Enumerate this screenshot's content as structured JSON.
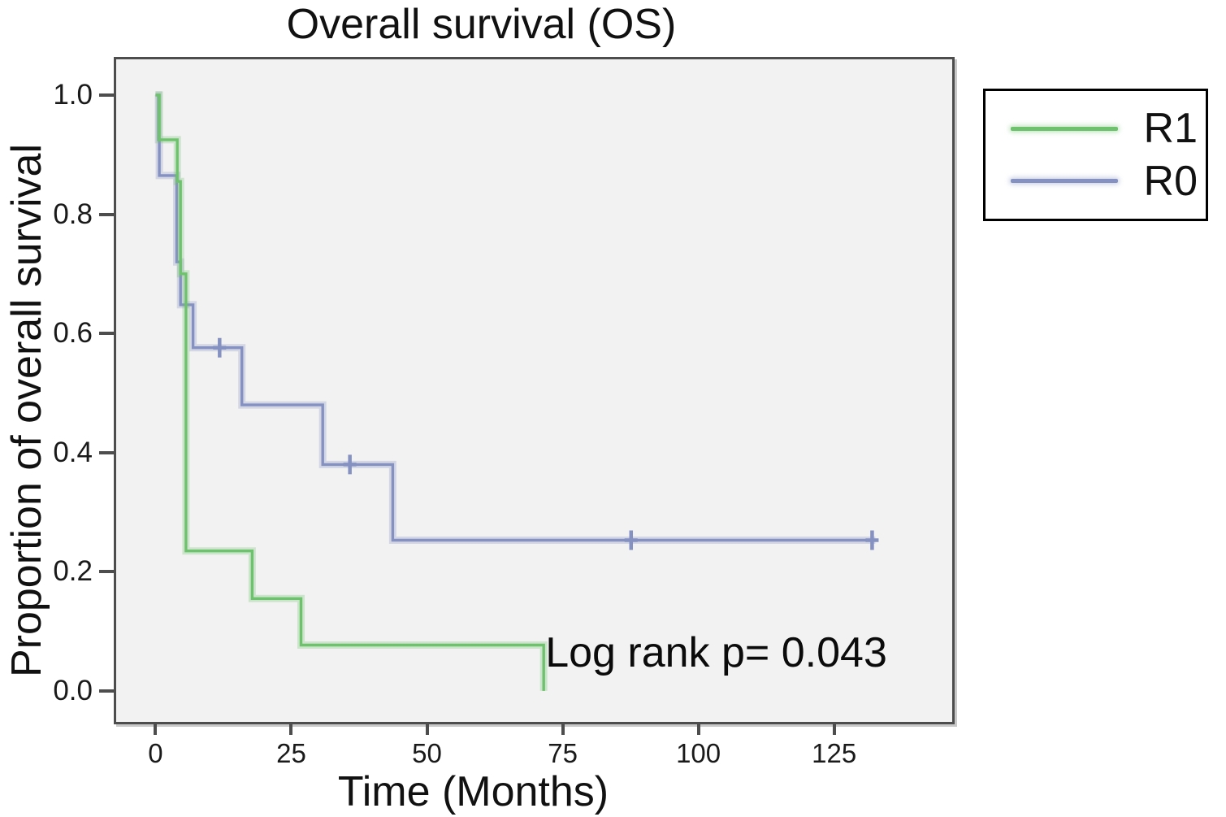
{
  "chart_data": {
    "type": "line",
    "subtype": "kaplan_meier_step_plot",
    "title": "Overall survival (OS)",
    "xlabel": "Time (Months)",
    "ylabel": "Proportion of overall survival",
    "annotation": {
      "text": "Log rank p= 0.043",
      "x": 71.8,
      "y": 0.101
    },
    "xlim": [
      -7.7,
      147.2
    ],
    "ylim": [
      -0.056,
      1.064
    ],
    "grid": false,
    "plot_background": "#f2f2f2",
    "frame_color": "#4d4d4d",
    "legend_position": "outside-top-right",
    "xticks": [
      {
        "label": "0",
        "value": 0
      },
      {
        "label": "25",
        "value": 25
      },
      {
        "label": "50",
        "value": 50
      },
      {
        "label": "75",
        "value": 75
      },
      {
        "label": "100",
        "value": 100
      },
      {
        "label": "125",
        "value": 125
      }
    ],
    "yticks": [
      {
        "label": "0.0",
        "value": 0.0
      },
      {
        "label": "0.2",
        "value": 0.2
      },
      {
        "label": "0.4",
        "value": 0.4
      },
      {
        "label": "0.6",
        "value": 0.6
      },
      {
        "label": "0.8",
        "value": 0.8
      },
      {
        "label": "1.0",
        "value": 1.0
      }
    ],
    "series": [
      {
        "name": "R1",
        "color": "#6fc26d",
        "steps_time_proportion": [
          [
            0,
            1.0
          ],
          [
            0.7,
            1.0
          ],
          [
            0.7,
            0.925
          ],
          [
            4.0,
            0.925
          ],
          [
            4.0,
            0.855
          ],
          [
            4.6,
            0.855
          ],
          [
            4.6,
            0.7
          ],
          [
            5.6,
            0.7
          ],
          [
            5.6,
            0.235
          ],
          [
            17.8,
            0.235
          ],
          [
            17.8,
            0.155
          ],
          [
            26.8,
            0.155
          ],
          [
            26.8,
            0.077
          ],
          [
            71.5,
            0.077
          ],
          [
            71.5,
            0.0
          ]
        ],
        "censor_marks": []
      },
      {
        "name": "R0",
        "color": "#8591c1",
        "steps_time_proportion": [
          [
            0,
            1.0
          ],
          [
            0.55,
            1.0
          ],
          [
            0.55,
            0.925
          ],
          [
            0.7,
            0.925
          ],
          [
            0.7,
            0.865
          ],
          [
            3.9,
            0.865
          ],
          [
            3.9,
            0.72
          ],
          [
            4.6,
            0.72
          ],
          [
            4.6,
            0.648
          ],
          [
            6.9,
            0.648
          ],
          [
            6.9,
            0.576
          ],
          [
            15.9,
            0.576
          ],
          [
            15.9,
            0.48
          ],
          [
            30.8,
            0.48
          ],
          [
            30.8,
            0.38
          ],
          [
            43.7,
            0.38
          ],
          [
            43.7,
            0.253
          ],
          [
            132.6,
            0.253
          ]
        ],
        "censor_marks": [
          [
            11.8,
            0.576
          ],
          [
            35.8,
            0.38
          ],
          [
            87.6,
            0.253
          ],
          [
            132.0,
            0.253
          ]
        ]
      }
    ]
  }
}
